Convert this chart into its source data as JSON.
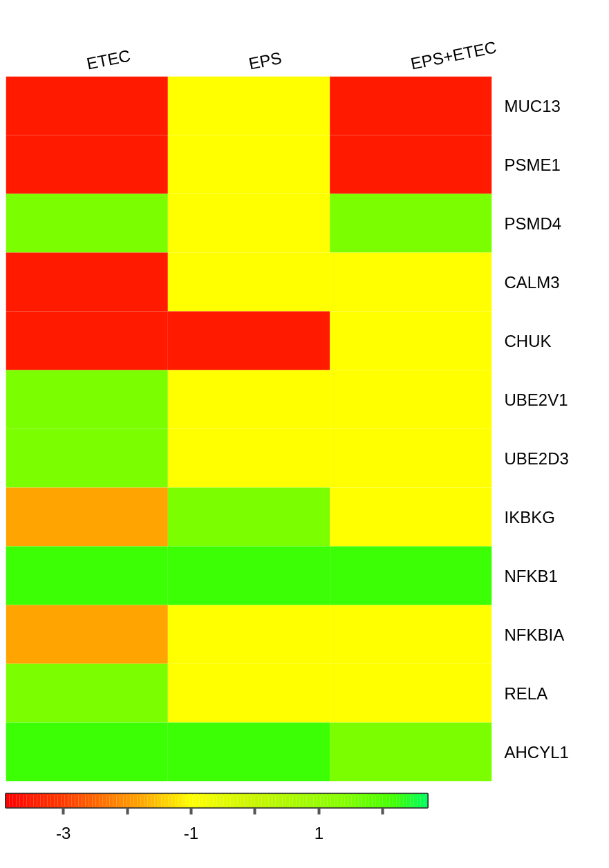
{
  "chart_data": {
    "type": "heatmap",
    "categories": [
      "ETEC",
      "EPS",
      "EPS+ETEC"
    ],
    "y_categories": [
      "MUC13",
      "PSME1",
      "PSMD4",
      "CALM3",
      "CHUK",
      "UBE2V1",
      "UBE2D3",
      "IKBKG",
      "NFKB1",
      "NFKBIA",
      "RELA",
      "AHCYL1"
    ],
    "cells": [
      [
        -3.5,
        -1,
        -3.5
      ],
      [
        -3.5,
        -1,
        -3.5
      ],
      [
        1.5,
        -1,
        1.5
      ],
      [
        -3.5,
        -1,
        -1
      ],
      [
        -3.5,
        -3.5,
        -1
      ],
      [
        1.5,
        -1,
        -1
      ],
      [
        1.5,
        -1,
        -1
      ],
      [
        -1.8,
        1.5,
        -1
      ],
      [
        2.2,
        2.2,
        2.2
      ],
      [
        -1.8,
        -1,
        -1
      ],
      [
        1.5,
        -1,
        -1
      ],
      [
        2.2,
        2.2,
        1.5
      ]
    ],
    "clim": [
      -3.9,
      2.7
    ],
    "cticks": [
      -3,
      {
        "value": -2,
        "label": null
      },
      -1,
      {
        "value": 0,
        "label": null
      },
      1,
      {
        "value": 2,
        "label": null
      }
    ]
  }
}
